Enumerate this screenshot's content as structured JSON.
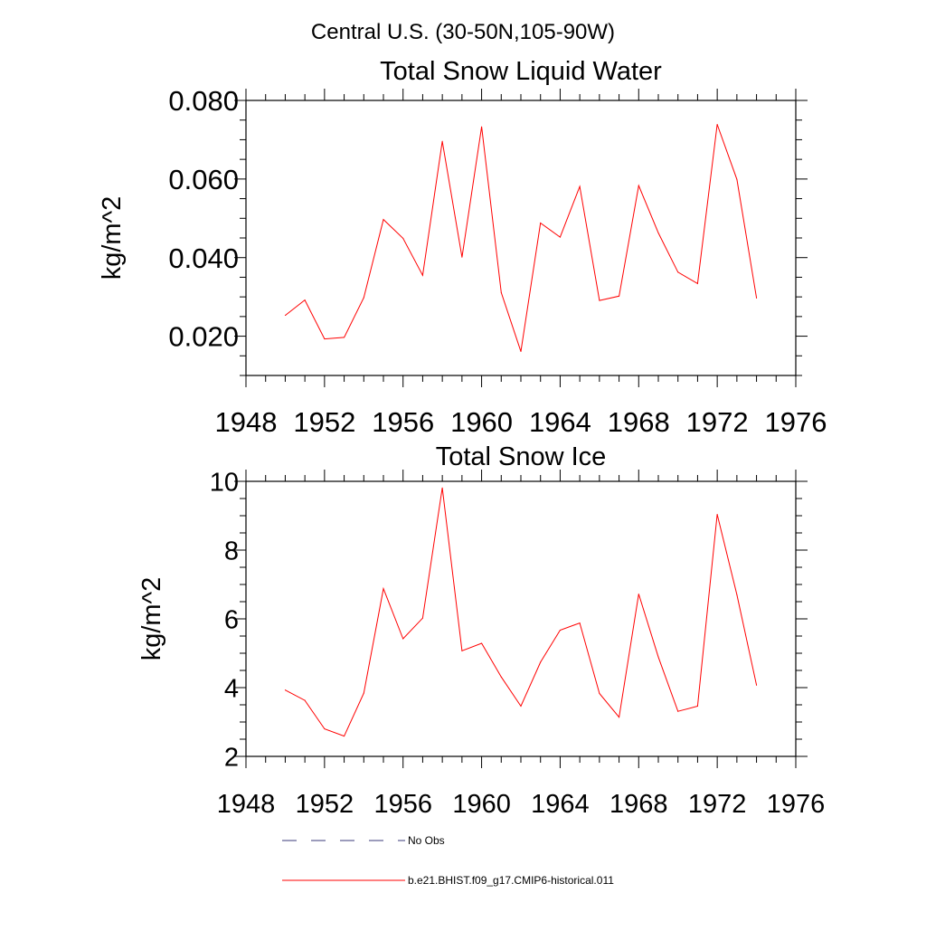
{
  "figure": {
    "suptitle": "Central U.S. (30-50N,105-90W)"
  },
  "chart_data": [
    {
      "type": "line",
      "title": "Total Snow Liquid Water",
      "xlabel": "",
      "ylabel": "kg/m^2",
      "xlim": [
        1948,
        1976
      ],
      "ylim": [
        0.01,
        0.08
      ],
      "xticks": [
        1948,
        1952,
        1956,
        1960,
        1964,
        1968,
        1972,
        1976
      ],
      "xtick_labels": [
        "1948",
        "1952",
        "1956",
        "1960",
        "1964",
        "1968",
        "1972",
        "1976"
      ],
      "yticks": [
        0.02,
        0.04,
        0.06,
        0.08
      ],
      "ytick_labels": [
        "0.020",
        "0.040",
        "0.060",
        "0.080"
      ],
      "y_minor_step": 0.005,
      "x_minor_step": 1,
      "grid": false,
      "series": [
        {
          "name": "b.e21.BHIST.f09_g17.CMIP6-historical.011",
          "color": "#ff0000",
          "x": [
            1950,
            1951,
            1952,
            1953,
            1954,
            1955,
            1956,
            1957,
            1958,
            1959,
            1960,
            1961,
            1962,
            1963,
            1964,
            1965,
            1966,
            1967,
            1968,
            1969,
            1970,
            1971,
            1972,
            1973,
            1974
          ],
          "y": [
            0.0253,
            0.0292,
            0.0193,
            0.0197,
            0.0298,
            0.0497,
            0.0449,
            0.0355,
            0.0696,
            0.0401,
            0.0733,
            0.0311,
            0.0161,
            0.0488,
            0.0452,
            0.0581,
            0.0291,
            0.0302,
            0.0583,
            0.0463,
            0.0363,
            0.0334,
            0.0739,
            0.0599,
            0.0297
          ]
        }
      ]
    },
    {
      "type": "line",
      "title": "Total Snow Ice",
      "xlabel": "",
      "ylabel": "kg/m^2",
      "xlim": [
        1948,
        1976
      ],
      "ylim": [
        2,
        10
      ],
      "xticks": [
        1948,
        1952,
        1956,
        1960,
        1964,
        1968,
        1972,
        1976
      ],
      "xtick_labels": [
        "1948",
        "1952",
        "1956",
        "1960",
        "1964",
        "1968",
        "1972",
        "1976"
      ],
      "yticks": [
        2,
        4,
        6,
        8,
        10
      ],
      "ytick_labels": [
        "2",
        "4",
        "6",
        "8",
        "10"
      ],
      "y_minor_step": 0.5,
      "x_minor_step": 1,
      "grid": false,
      "series": [
        {
          "name": "b.e21.BHIST.f09_g17.CMIP6-historical.011",
          "color": "#ff0000",
          "x": [
            1950,
            1951,
            1952,
            1953,
            1954,
            1955,
            1956,
            1957,
            1958,
            1959,
            1960,
            1961,
            1962,
            1963,
            1964,
            1965,
            1966,
            1967,
            1968,
            1969,
            1970,
            1971,
            1972,
            1973,
            1974
          ],
          "y": [
            3.93,
            3.63,
            2.8,
            2.59,
            3.84,
            6.88,
            5.42,
            6.02,
            9.81,
            5.07,
            5.29,
            4.31,
            3.46,
            4.74,
            5.67,
            5.88,
            3.83,
            3.14,
            6.72,
            4.89,
            3.31,
            3.46,
            9.04,
            6.7,
            4.07
          ]
        }
      ]
    }
  ],
  "legend": {
    "placement": "bottom",
    "items": [
      {
        "label": "No Obs",
        "color": "#3a3a7a",
        "style": "dashed"
      },
      {
        "label": "b.e21.BHIST.f09_g17.CMIP6-historical.011",
        "color": "#ff0000",
        "style": "solid"
      }
    ]
  }
}
